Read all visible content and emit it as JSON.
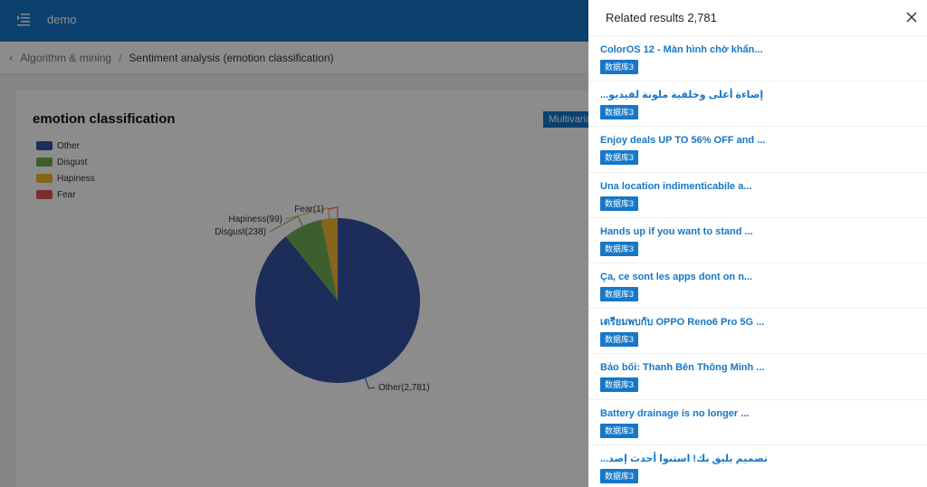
{
  "app": {
    "title": "demo"
  },
  "breadcrumb": {
    "parent": "Algorithm & mining",
    "separator": "/",
    "current": "Sentiment analysis (emotion classification)"
  },
  "card": {
    "title": "emotion classification",
    "multivariate_button": "Multivaria"
  },
  "chart_data": {
    "type": "pie",
    "title": "emotion classification",
    "legend_position": "top-left",
    "slices": [
      {
        "name": "Other",
        "value": 2781,
        "color": "#3452a4",
        "label": "Other(2,781)"
      },
      {
        "name": "Disgust",
        "value": 238,
        "color": "#6fae52",
        "label": "Disgust(238)"
      },
      {
        "name": "Hapiness",
        "value": 99,
        "color": "#f2b634",
        "label": "Hapiness(99)"
      },
      {
        "name": "Fear",
        "value": 1,
        "color": "#e0525b",
        "label": "Fear(1)"
      }
    ]
  },
  "drawer": {
    "title": "Related results 2,781",
    "results": [
      {
        "title": "ColorOS 12 - Màn hình chờ khẩn...",
        "tag": "数据库3",
        "rtl": false
      },
      {
        "title": "إضاءة أعلى وخلفية ملونة لفيديو...",
        "tag": "数据库3",
        "rtl": true
      },
      {
        "title": "Enjoy deals UP TO 56% OFF and ...",
        "tag": "数据库3",
        "rtl": false
      },
      {
        "title": "Una location indimenticabile a...",
        "tag": "数据库3",
        "rtl": false
      },
      {
        "title": "Hands up if you want to stand ...",
        "tag": "数据库3",
        "rtl": false
      },
      {
        "title": "Ça, ce sont les apps dont on n...",
        "tag": "数据库3",
        "rtl": false
      },
      {
        "title": "เตรียมพบกับ OPPO Reno6 Pro 5G ...",
        "tag": "数据库3",
        "rtl": false
      },
      {
        "title": "Bảo bối: Thanh Bên Thông Minh ...",
        "tag": "数据库3",
        "rtl": false
      },
      {
        "title": "Battery drainage is no longer ...",
        "tag": "数据库3",
        "rtl": false
      },
      {
        "title": "تصميم يليق بك! استنوا أحدث إصد...",
        "tag": "数据库3",
        "rtl": true
      }
    ]
  }
}
